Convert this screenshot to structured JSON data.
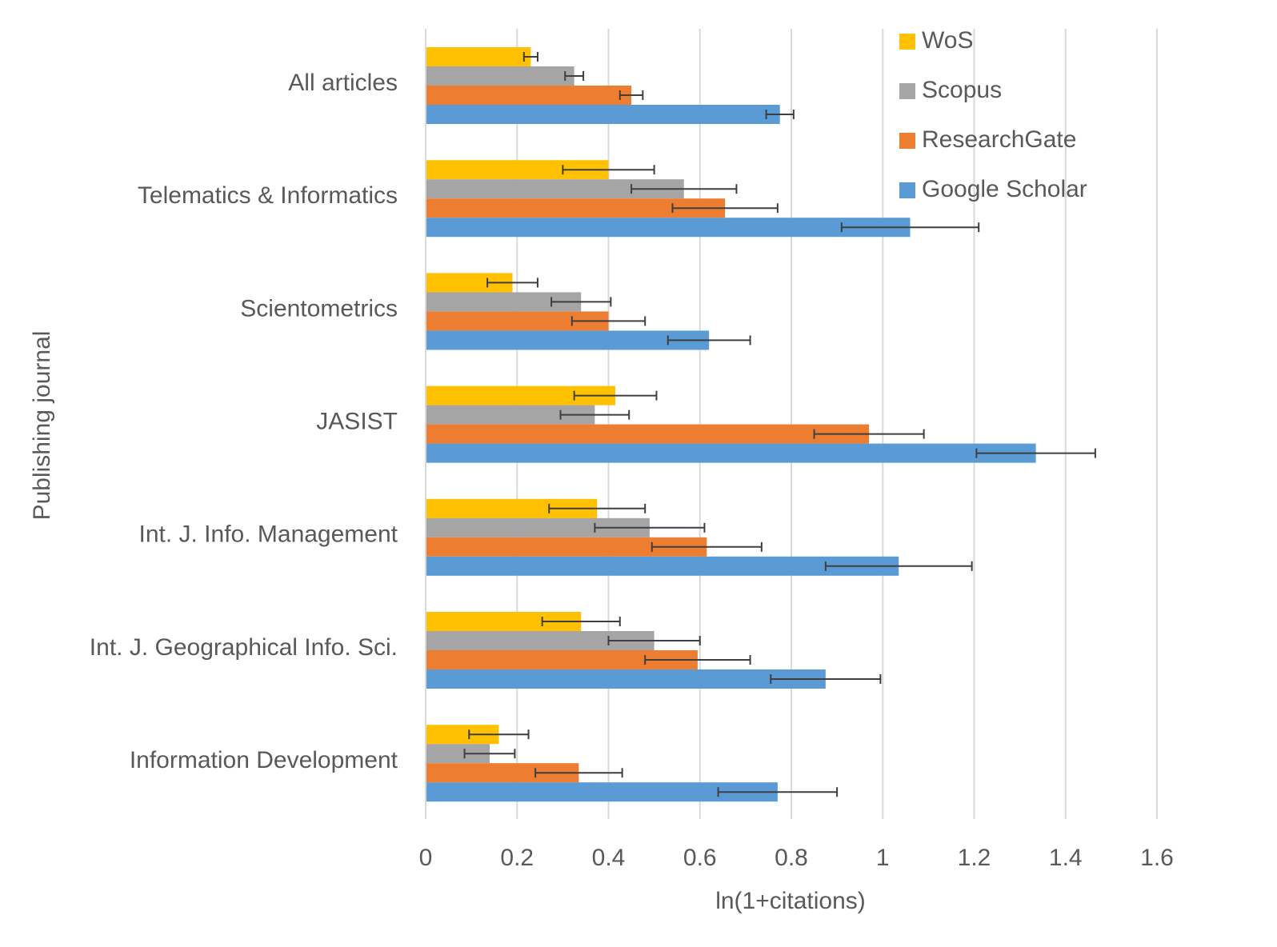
{
  "chart_data": {
    "type": "bar",
    "orientation": "horizontal",
    "title": "",
    "xlabel": "ln(1+citations)",
    "ylabel": "Publishing journal",
    "xlim": [
      0,
      1.6
    ],
    "xticks": [
      0,
      0.2,
      0.4,
      0.6,
      0.8,
      1,
      1.2,
      1.4,
      1.6
    ],
    "xtick_labels": [
      "0",
      "0.2",
      "0.4",
      "0.6",
      "0.8",
      "1",
      "1.2",
      "1.4",
      "1.6"
    ],
    "grid": true,
    "legend_position": "top-right",
    "categories": [
      "All articles",
      "Telematics & Informatics",
      "Scientometrics",
      "JASIST",
      "Int. J. Info. Management",
      "Int. J. Geographical Info. Sci.",
      "Information Development"
    ],
    "series": [
      {
        "name": "WoS",
        "color": "#FFC000",
        "values": [
          0.23,
          0.4,
          0.19,
          0.415,
          0.375,
          0.34,
          0.16
        ],
        "errors": [
          0.015,
          0.1,
          0.055,
          0.09,
          0.105,
          0.085,
          0.065
        ]
      },
      {
        "name": "Scopus",
        "color": "#A5A5A5",
        "values": [
          0.325,
          0.565,
          0.34,
          0.37,
          0.49,
          0.5,
          0.14
        ],
        "errors": [
          0.02,
          0.115,
          0.065,
          0.075,
          0.12,
          0.1,
          0.055
        ]
      },
      {
        "name": "ResearchGate",
        "color": "#ED7D31",
        "values": [
          0.45,
          0.655,
          0.4,
          0.97,
          0.615,
          0.595,
          0.335
        ],
        "errors": [
          0.025,
          0.115,
          0.08,
          0.12,
          0.12,
          0.115,
          0.095
        ]
      },
      {
        "name": "Google Scholar",
        "color": "#5B9BD5",
        "values": [
          0.775,
          1.06,
          0.62,
          1.335,
          1.035,
          0.875,
          0.77
        ],
        "errors": [
          0.03,
          0.15,
          0.09,
          0.13,
          0.16,
          0.12,
          0.13
        ]
      }
    ]
  }
}
